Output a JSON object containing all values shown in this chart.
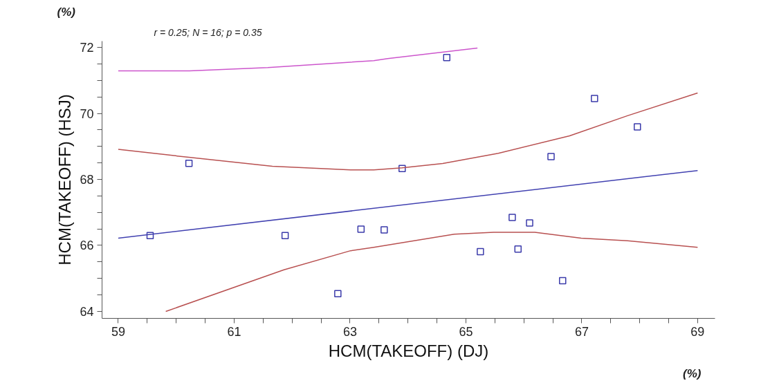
{
  "chart_data": {
    "type": "scatter",
    "xlabel": "HCM(TAKEOFF) (DJ)",
    "ylabel": "HCM(TAKEOFF) (HSJ)",
    "annotations": [
      "r = 0.25; N = 16; p = 0.35",
      "(%)",
      "(%)"
    ],
    "xlim": [
      58.72,
      69.3
    ],
    "ylim": [
      63.79,
      72.19
    ],
    "xticks": [
      59,
      {
        "value": 59.5,
        "label": null
      },
      {
        "value": 60,
        "label": null
      },
      {
        "value": 60.5,
        "label": null
      },
      61,
      {
        "value": 61.5,
        "label": null
      },
      {
        "value": 62,
        "label": null
      },
      {
        "value": 62.5,
        "label": null
      },
      63,
      {
        "value": 63.5,
        "label": null
      },
      {
        "value": 64,
        "label": null
      },
      {
        "value": 64.5,
        "label": null
      },
      65,
      {
        "value": 65.5,
        "label": null
      },
      {
        "value": 66,
        "label": null
      },
      {
        "value": 66.5,
        "label": null
      },
      67,
      {
        "value": 67.5,
        "label": null
      },
      {
        "value": 68,
        "label": null
      },
      {
        "value": 68.5,
        "label": null
      },
      69
    ],
    "yticks": [
      64,
      {
        "value": 64.5,
        "label": null
      },
      {
        "value": 65,
        "label": null
      },
      {
        "value": 65.5,
        "label": null
      },
      66,
      {
        "value": 66.5,
        "label": null
      },
      {
        "value": 67,
        "label": null
      },
      {
        "value": 67.5,
        "label": null
      },
      68,
      {
        "value": 68.5,
        "label": null
      },
      {
        "value": 69,
        "label": null
      },
      {
        "value": 69.5,
        "label": null
      },
      70,
      {
        "value": 70.5,
        "label": null
      },
      {
        "value": 71,
        "label": null
      },
      {
        "value": 71.5,
        "label": null
      },
      72
    ],
    "grid": false,
    "series": [
      {
        "marker": "square",
        "color": "#3a3aaa",
        "x": [
          59.55,
          60.22,
          61.88,
          62.79,
          63.19,
          63.59,
          63.9,
          64.67,
          65.25,
          65.8,
          65.9,
          66.1,
          66.47,
          66.67,
          67.22,
          67.96
        ],
        "values": [
          66.3,
          68.49,
          66.3,
          64.54,
          66.49,
          66.47,
          68.33,
          71.69,
          65.81,
          66.85,
          65.89,
          66.68,
          68.69,
          64.93,
          70.45,
          69.59
        ]
      },
      {
        "type": "line",
        "marker": "none",
        "line_style": "solid",
        "color": "#4040b0",
        "x": [
          59,
          69
        ],
        "values": [
          66.22,
          68.27
        ]
      },
      {
        "type": "line",
        "marker": "none",
        "line_style": "solid",
        "color": "#b85050",
        "x": [
          59,
          60.22,
          61.66,
          63.01,
          63.41,
          63.9,
          64.6,
          65.56,
          66.79,
          67.79,
          69.0
        ],
        "values": [
          68.91,
          68.67,
          68.4,
          68.29,
          68.29,
          68.35,
          68.48,
          68.79,
          69.32,
          69.93,
          70.62
        ]
      },
      {
        "type": "line",
        "marker": "none",
        "line_style": "solid",
        "color": "#b85050",
        "x": [
          59.82,
          61.86,
          63.01,
          63.41,
          64.8,
          65.48,
          66.19,
          66.99,
          67.79,
          69.0
        ],
        "values": [
          64.0,
          65.26,
          65.84,
          65.94,
          66.34,
          66.4,
          66.4,
          66.22,
          66.14,
          65.94
        ]
      },
      {
        "type": "line",
        "marker": "none",
        "line_style": "solid",
        "color": "#cc55cc",
        "x": [
          59,
          60.23,
          61.58,
          63.41,
          63.65,
          65.2
        ],
        "values": [
          71.29,
          71.29,
          71.39,
          71.6,
          71.66,
          71.98
        ]
      }
    ]
  }
}
